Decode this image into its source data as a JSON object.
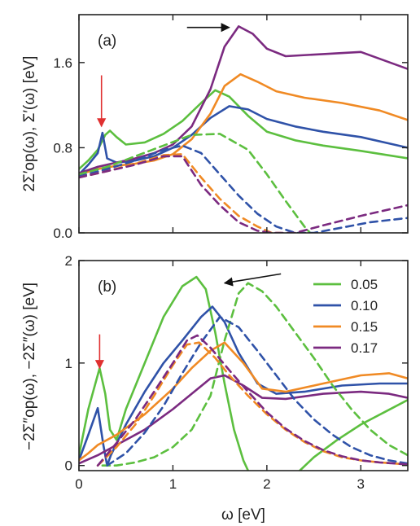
{
  "chart_data": [
    {
      "type": "line",
      "panel_label": "(a)",
      "ylabel": "2Σ′op(ω), Σ′(ω) [eV]",
      "xlim": [
        0,
        3.5
      ],
      "ylim": [
        0,
        2.05
      ],
      "xticks": [
        0,
        1,
        2,
        3
      ],
      "yticks": [
        0.0,
        0.8,
        1.6
      ],
      "ytick_labels": [
        "0.0",
        "0.8",
        "1.6"
      ],
      "annotations": [
        {
          "type": "arrow",
          "color": "#e03030",
          "from": [
            0.24,
            1.48
          ],
          "to": [
            0.24,
            1.0
          ]
        },
        {
          "type": "arrow",
          "color": "#111111",
          "from": [
            1.15,
            1.93
          ],
          "to": [
            1.6,
            1.93
          ]
        }
      ],
      "series": [
        {
          "label": "0.05",
          "color": "#5cbf3f",
          "style": "solid",
          "x": [
            0,
            0.1,
            0.2,
            0.28,
            0.33,
            0.4,
            0.5,
            0.7,
            0.9,
            1.1,
            1.3,
            1.45,
            1.6,
            1.8,
            2.0,
            2.3,
            2.6,
            3.0,
            3.5
          ],
          "y": [
            0.6,
            0.68,
            0.78,
            0.92,
            0.96,
            0.9,
            0.83,
            0.85,
            0.93,
            1.05,
            1.22,
            1.34,
            1.28,
            1.1,
            0.95,
            0.87,
            0.82,
            0.77,
            0.7
          ]
        },
        {
          "label": "0.10",
          "color": "#2f52a8",
          "style": "solid",
          "x": [
            0,
            0.1,
            0.2,
            0.25,
            0.3,
            0.4,
            0.6,
            0.8,
            1.0,
            1.2,
            1.4,
            1.6,
            1.8,
            2.0,
            2.3,
            2.6,
            3.0,
            3.5
          ],
          "y": [
            0.55,
            0.64,
            0.75,
            0.94,
            0.7,
            0.66,
            0.68,
            0.72,
            0.8,
            0.92,
            1.08,
            1.19,
            1.16,
            1.07,
            1.0,
            0.95,
            0.9,
            0.8
          ]
        },
        {
          "label": "0.15",
          "color": "#f08a24",
          "style": "solid",
          "x": [
            0,
            0.2,
            0.4,
            0.6,
            0.8,
            1.0,
            1.2,
            1.4,
            1.55,
            1.72,
            1.9,
            2.1,
            2.4,
            2.8,
            3.2,
            3.5
          ],
          "y": [
            0.55,
            0.6,
            0.63,
            0.65,
            0.68,
            0.74,
            0.88,
            1.12,
            1.38,
            1.49,
            1.42,
            1.33,
            1.27,
            1.22,
            1.15,
            1.06
          ]
        },
        {
          "label": "0.17",
          "color": "#7b2a80",
          "style": "solid",
          "x": [
            0,
            0.2,
            0.4,
            0.6,
            0.8,
            1.0,
            1.2,
            1.4,
            1.55,
            1.7,
            1.85,
            2.0,
            2.2,
            2.6,
            3.0,
            3.5
          ],
          "y": [
            0.56,
            0.62,
            0.66,
            0.7,
            0.75,
            0.83,
            1.0,
            1.35,
            1.75,
            1.94,
            1.87,
            1.73,
            1.66,
            1.68,
            1.7,
            1.54
          ]
        },
        {
          "label": "0.05",
          "color": "#5cbf3f",
          "style": "dashed",
          "x": [
            0,
            0.3,
            0.6,
            0.9,
            1.2,
            1.5,
            1.8,
            2.0,
            2.2,
            2.4,
            2.46
          ],
          "y": [
            0.55,
            0.62,
            0.72,
            0.82,
            0.92,
            0.93,
            0.78,
            0.55,
            0.3,
            0.06,
            0.0
          ]
        },
        {
          "label": "0.10",
          "color": "#2f52a8",
          "style": "dashed",
          "x": [
            0,
            0.3,
            0.6,
            0.9,
            1.1,
            1.3,
            1.5,
            1.7,
            1.9,
            2.1,
            2.3,
            2.5,
            2.8,
            3.1,
            3.5
          ],
          "y": [
            0.53,
            0.6,
            0.68,
            0.78,
            0.82,
            0.75,
            0.55,
            0.35,
            0.18,
            0.06,
            0.0,
            0.0,
            0.05,
            0.1,
            0.14
          ]
        },
        {
          "label": "0.15",
          "color": "#f08a24",
          "style": "dashed",
          "x": [
            0,
            0.3,
            0.6,
            0.9,
            1.1,
            1.3,
            1.5,
            1.7,
            1.9,
            2.05,
            2.15
          ],
          "y": [
            0.52,
            0.58,
            0.65,
            0.73,
            0.74,
            0.52,
            0.32,
            0.16,
            0.06,
            0.0,
            0.0
          ]
        },
        {
          "label": "0.17",
          "color": "#7b2a80",
          "style": "dashed",
          "x": [
            0,
            0.3,
            0.6,
            0.9,
            1.1,
            1.3,
            1.5,
            1.7,
            1.9,
            2.05,
            2.3,
            2.6,
            3.0,
            3.5
          ],
          "y": [
            0.52,
            0.58,
            0.64,
            0.72,
            0.72,
            0.45,
            0.26,
            0.1,
            0.02,
            0.0,
            0.0,
            0.07,
            0.16,
            0.26
          ]
        }
      ]
    },
    {
      "type": "line",
      "panel_label": "(b)",
      "xlabel": "ω [eV]",
      "ylabel": "−2Σ″op(ω), −2Σ″(ω) [eV]",
      "xlim": [
        0,
        3.5
      ],
      "ylim": [
        -0.05,
        2.0
      ],
      "xticks": [
        0,
        1,
        2,
        3
      ],
      "yticks": [
        0,
        1,
        2
      ],
      "legend": {
        "position": "top-right",
        "entries": [
          "0.05",
          "0.10",
          "0.15",
          "0.17"
        ]
      },
      "annotations": [
        {
          "type": "arrow",
          "color": "#e03030",
          "from": [
            0.22,
            1.28
          ],
          "to": [
            0.22,
            0.95
          ]
        },
        {
          "type": "arrow",
          "color": "#111111",
          "from": [
            2.15,
            1.87
          ],
          "to": [
            1.55,
            1.78
          ]
        }
      ],
      "series": [
        {
          "label": "0.05",
          "color": "#5cbf3f",
          "style": "solid",
          "x": [
            0,
            0.1,
            0.22,
            0.28,
            0.33,
            0.4,
            0.5,
            0.7,
            0.9,
            1.1,
            1.25,
            1.35,
            1.45,
            1.55,
            1.65,
            1.75,
            1.8
          ],
          "y": [
            0.1,
            0.55,
            0.95,
            0.7,
            0.35,
            0.25,
            0.55,
            1.0,
            1.45,
            1.75,
            1.84,
            1.72,
            1.3,
            0.8,
            0.35,
            0.05,
            -0.05
          ]
        },
        {
          "label": "0.05",
          "color": "#5cbf3f",
          "style": "solid",
          "x": [
            2.35,
            2.5,
            2.75,
            3.0,
            3.25,
            3.5
          ],
          "y": [
            -0.05,
            0.08,
            0.25,
            0.4,
            0.52,
            0.64
          ]
        },
        {
          "label": "0.10",
          "color": "#2f52a8",
          "style": "solid",
          "x": [
            0,
            0.1,
            0.2,
            0.26,
            0.3,
            0.34,
            0.5,
            0.7,
            0.9,
            1.1,
            1.3,
            1.42,
            1.55,
            1.7,
            1.9,
            2.1,
            2.4,
            2.8,
            3.2,
            3.5
          ],
          "y": [
            0.05,
            0.3,
            0.56,
            0.2,
            0.0,
            0.1,
            0.4,
            0.72,
            1.0,
            1.22,
            1.45,
            1.55,
            1.4,
            1.1,
            0.8,
            0.7,
            0.72,
            0.78,
            0.8,
            0.8
          ]
        },
        {
          "label": "0.15",
          "color": "#f08a24",
          "style": "solid",
          "x": [
            0,
            0.1,
            0.2,
            0.4,
            0.7,
            1.0,
            1.2,
            1.4,
            1.55,
            1.75,
            1.95,
            2.2,
            2.6,
            3.0,
            3.3,
            3.5
          ],
          "y": [
            0.05,
            0.12,
            0.2,
            0.3,
            0.5,
            0.75,
            0.95,
            1.12,
            1.2,
            1.0,
            0.75,
            0.72,
            0.8,
            0.88,
            0.9,
            0.85
          ]
        },
        {
          "label": "0.17",
          "color": "#7b2a80",
          "style": "solid",
          "x": [
            0,
            0.2,
            0.4,
            0.7,
            1.0,
            1.2,
            1.4,
            1.55,
            1.75,
            1.95,
            2.2,
            2.6,
            3.0,
            3.3,
            3.5
          ],
          "y": [
            0.02,
            0.1,
            0.2,
            0.35,
            0.55,
            0.7,
            0.85,
            0.88,
            0.78,
            0.66,
            0.65,
            0.7,
            0.72,
            0.7,
            0.66
          ]
        },
        {
          "label": "0.05",
          "color": "#5cbf3f",
          "style": "dashed",
          "x": [
            0.25,
            0.4,
            0.6,
            0.8,
            1.0,
            1.2,
            1.4,
            1.55,
            1.7,
            1.8,
            1.95,
            2.1,
            2.3,
            2.5,
            2.7,
            2.9,
            3.1,
            3.3,
            3.5
          ],
          "y": [
            0.0,
            0.0,
            0.03,
            0.08,
            0.18,
            0.35,
            0.68,
            1.22,
            1.68,
            1.78,
            1.7,
            1.55,
            1.3,
            1.05,
            0.78,
            0.55,
            0.35,
            0.2,
            0.1
          ]
        },
        {
          "label": "0.10",
          "color": "#2f52a8",
          "style": "dashed",
          "x": [
            0.3,
            0.5,
            0.7,
            0.9,
            1.1,
            1.3,
            1.5,
            1.7,
            1.9,
            2.1,
            2.3,
            2.5,
            2.7,
            2.9,
            3.1,
            3.3,
            3.5
          ],
          "y": [
            0.0,
            0.12,
            0.32,
            0.58,
            0.9,
            1.2,
            1.45,
            1.35,
            1.12,
            0.88,
            0.64,
            0.45,
            0.3,
            0.18,
            0.1,
            0.05,
            0.02
          ]
        },
        {
          "label": "0.15",
          "color": "#f08a24",
          "style": "dashed",
          "x": [
            0.2,
            0.4,
            0.6,
            0.8,
            1.0,
            1.15,
            1.28,
            1.45,
            1.6,
            1.8,
            2.0,
            2.2,
            2.4,
            2.6,
            2.8,
            3.0,
            3.2,
            3.5
          ],
          "y": [
            0.0,
            0.18,
            0.4,
            0.68,
            0.98,
            1.18,
            1.2,
            1.05,
            0.88,
            0.68,
            0.5,
            0.35,
            0.23,
            0.14,
            0.08,
            0.05,
            0.03,
            0.01
          ]
        },
        {
          "label": "0.17",
          "color": "#7b2a80",
          "style": "dashed",
          "x": [
            0.2,
            0.4,
            0.6,
            0.8,
            1.0,
            1.15,
            1.26,
            1.4,
            1.6,
            1.8,
            2.0,
            2.2,
            2.4,
            2.6,
            2.8,
            3.0,
            3.2,
            3.5
          ],
          "y": [
            0.0,
            0.22,
            0.45,
            0.72,
            1.0,
            1.22,
            1.27,
            1.15,
            0.93,
            0.72,
            0.52,
            0.36,
            0.24,
            0.15,
            0.09,
            0.05,
            0.03,
            0.01
          ]
        }
      ]
    }
  ]
}
